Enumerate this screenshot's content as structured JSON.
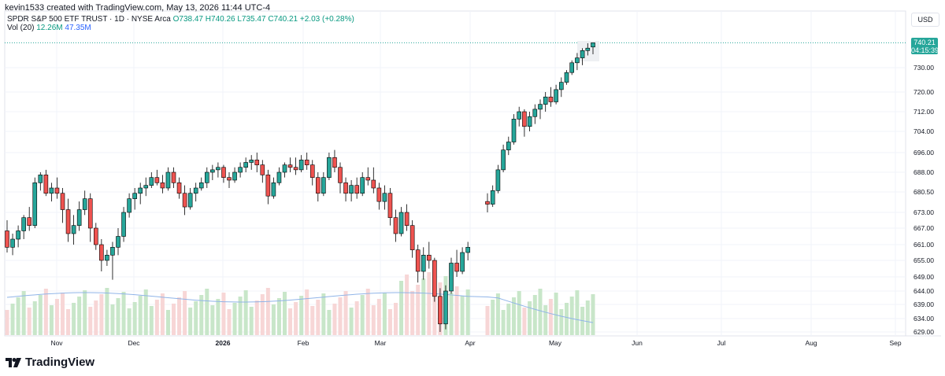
{
  "caption": "kevin1533 created with TradingView.com, May 13, 2026 11:44 UTC-4",
  "legend": {
    "symbol": "SPDR S&P 500 ETF TRUST · 1D · NYSE Arca",
    "open": "O738.47",
    "high": "H740.26",
    "low": "L735.47",
    "close": "C740.21",
    "change": "+2.03 (+0.28%)",
    "vol_label": "Vol (20)",
    "vol_value": "12.26M",
    "vol_ma": "47.35M"
  },
  "currency": "USD",
  "price_tag": {
    "price": "740.21",
    "countdown": "04:15:39"
  },
  "brand": "TradingView",
  "colors": {
    "up": "#26a69a",
    "down": "#ef5350",
    "vol_up": "#c8e6c9",
    "vol_down": "#f7d6d6",
    "vol_ma": "#90b4e8",
    "price_tag": "#26a69a"
  },
  "chart_data": {
    "type": "candlestick",
    "y_axis_labels": [
      "730.00",
      "720.00",
      "712.00",
      "704.00",
      "696.00",
      "688.00",
      "680.50",
      "673.00",
      "667.00",
      "661.00",
      "655.00",
      "649.00",
      "644.00",
      "639.00",
      "634.00",
      "629.00"
    ],
    "x_axis_labels": [
      "Nov",
      "Dec",
      "2026",
      "Feb",
      "Mar",
      "Apr",
      "May",
      "Jun",
      "Jul",
      "Aug",
      "Sep"
    ],
    "y_scale": "log",
    "last_price": 740.21,
    "candles_approx": [
      [
        666,
        670,
        658,
        660
      ],
      [
        660,
        665,
        657,
        663
      ],
      [
        663,
        668,
        660,
        666
      ],
      [
        666,
        672,
        663,
        671
      ],
      [
        671,
        675,
        666,
        668
      ],
      [
        668,
        686,
        667,
        684
      ],
      [
        684,
        688,
        681,
        687
      ],
      [
        687,
        689,
        679,
        680
      ],
      [
        680,
        684,
        677,
        682
      ],
      [
        682,
        686,
        678,
        680
      ],
      [
        680,
        682,
        669,
        674
      ],
      [
        674,
        678,
        662,
        665
      ],
      [
        665,
        672,
        661,
        668
      ],
      [
        668,
        677,
        666,
        674
      ],
      [
        674,
        681,
        672,
        678
      ],
      [
        678,
        680,
        662,
        667
      ],
      [
        667,
        669,
        659,
        661
      ],
      [
        661,
        663,
        651,
        655
      ],
      [
        655,
        659,
        653,
        657
      ],
      [
        657,
        662,
        648,
        660
      ],
      [
        660,
        667,
        657,
        664
      ],
      [
        664,
        675,
        662,
        673
      ],
      [
        673,
        680,
        671,
        678
      ],
      [
        678,
        682,
        674,
        680
      ],
      [
        680,
        684,
        676,
        682
      ],
      [
        682,
        686,
        679,
        683
      ],
      [
        683,
        688,
        682,
        686
      ],
      [
        686,
        689,
        683,
        684
      ],
      [
        684,
        687,
        680,
        682
      ],
      [
        682,
        690,
        681,
        688
      ],
      [
        688,
        690,
        682,
        684
      ],
      [
        684,
        686,
        678,
        680
      ],
      [
        680,
        683,
        672,
        675
      ],
      [
        675,
        682,
        674,
        680
      ],
      [
        680,
        684,
        677,
        682
      ],
      [
        682,
        686,
        681,
        684
      ],
      [
        684,
        690,
        682,
        688
      ],
      [
        688,
        691,
        685,
        689
      ],
      [
        689,
        692,
        686,
        690
      ],
      [
        690,
        691,
        684,
        686
      ],
      [
        686,
        688,
        682,
        685
      ],
      [
        685,
        690,
        684,
        688
      ],
      [
        688,
        692,
        686,
        690
      ],
      [
        690,
        694,
        688,
        692
      ],
      [
        692,
        695,
        689,
        693
      ],
      [
        693,
        696,
        688,
        691
      ],
      [
        691,
        693,
        684,
        687
      ],
      [
        687,
        689,
        676,
        679
      ],
      [
        679,
        686,
        678,
        684
      ],
      [
        684,
        690,
        683,
        688
      ],
      [
        688,
        692,
        686,
        691
      ],
      [
        691,
        694,
        688,
        690
      ],
      [
        690,
        694,
        687,
        689
      ],
      [
        689,
        695,
        688,
        693
      ],
      [
        693,
        696,
        689,
        691
      ],
      [
        691,
        693,
        683,
        686
      ],
      [
        686,
        688,
        677,
        680
      ],
      [
        680,
        688,
        679,
        686
      ],
      [
        686,
        696,
        685,
        694
      ],
      [
        694,
        697,
        688,
        690
      ],
      [
        690,
        692,
        680,
        684
      ],
      [
        684,
        686,
        677,
        680
      ],
      [
        680,
        685,
        677,
        683
      ],
      [
        683,
        686,
        678,
        680
      ],
      [
        680,
        688,
        679,
        686
      ],
      [
        686,
        690,
        683,
        685
      ],
      [
        685,
        690,
        680,
        682
      ],
      [
        682,
        684,
        674,
        677
      ],
      [
        677,
        683,
        674,
        680
      ],
      [
        680,
        682,
        668,
        671
      ],
      [
        671,
        674,
        662,
        665
      ],
      [
        665,
        675,
        664,
        673
      ],
      [
        673,
        676,
        666,
        668
      ],
      [
        668,
        670,
        656,
        659
      ],
      [
        659,
        661,
        647,
        651
      ],
      [
        651,
        660,
        648,
        657
      ],
      [
        657,
        662,
        652,
        655
      ],
      [
        655,
        656,
        640,
        642
      ],
      [
        642,
        645,
        629,
        632
      ],
      [
        632,
        646,
        630,
        644
      ],
      [
        644,
        656,
        643,
        654
      ],
      [
        654,
        659,
        649,
        651
      ],
      [
        651,
        660,
        650,
        658
      ],
      [
        658,
        662,
        655,
        660
      ],
      [
        677,
        680,
        673,
        676
      ],
      [
        676,
        683,
        675,
        681
      ],
      [
        681,
        691,
        680,
        689
      ],
      [
        689,
        699,
        688,
        697
      ],
      [
        697,
        702,
        695,
        700
      ],
      [
        700,
        711,
        699,
        709
      ],
      [
        709,
        714,
        706,
        712
      ],
      [
        712,
        713,
        702,
        706
      ],
      [
        706,
        712,
        704,
        710
      ],
      [
        710,
        715,
        707,
        713
      ],
      [
        713,
        717,
        709,
        715
      ],
      [
        715,
        720,
        712,
        718
      ],
      [
        718,
        722,
        714,
        716
      ],
      [
        716,
        723,
        715,
        721
      ],
      [
        721,
        726,
        718,
        724
      ],
      [
        724,
        729,
        723,
        728
      ],
      [
        728,
        733,
        727,
        732
      ],
      [
        732,
        736,
        729,
        734
      ],
      [
        734,
        738,
        731,
        737
      ],
      [
        737,
        740,
        735,
        738
      ],
      [
        738.47,
        740.26,
        735.47,
        740.21
      ]
    ]
  }
}
